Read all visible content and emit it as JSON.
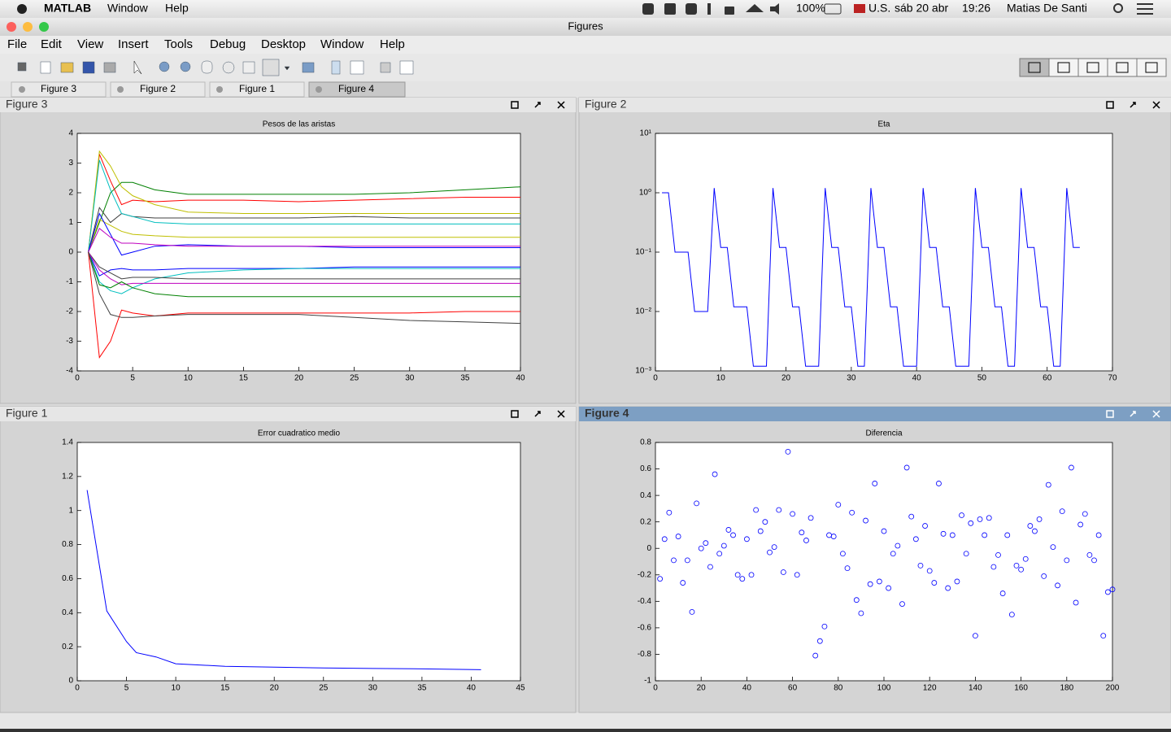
{
  "menubar": {
    "app": "MATLAB",
    "menus": [
      "Window",
      "Help"
    ],
    "status": [
      "100%",
      "U.S.",
      "sáb 20 abr",
      "19:26",
      "Matias De Santi"
    ]
  },
  "window": {
    "title": "Figures",
    "menus": [
      "File",
      "Edit",
      "View",
      "Insert",
      "Tools",
      "Debug",
      "Desktop",
      "Window",
      "Help"
    ],
    "tabs": [
      "Figure 3",
      "Figure 2",
      "Figure 1",
      "Figure 4"
    ]
  },
  "chart_data": [
    {
      "panel": "Figure 3",
      "type": "line",
      "title": "Pesos de las aristas",
      "x": [
        1,
        2,
        3,
        4,
        5,
        7,
        10,
        15,
        20,
        25,
        30,
        35,
        40
      ],
      "series": [
        {
          "color": "#008000",
          "values": [
            0,
            1.0,
            2.0,
            2.35,
            2.35,
            2.1,
            1.95,
            1.95,
            1.95,
            1.95,
            2.0,
            2.1,
            2.2
          ]
        },
        {
          "color": "#ff0000",
          "values": [
            0,
            3.3,
            2.4,
            1.6,
            1.75,
            1.7,
            1.75,
            1.75,
            1.7,
            1.75,
            1.8,
            1.85,
            1.85
          ]
        },
        {
          "color": "#bfbf00",
          "values": [
            0,
            3.4,
            2.9,
            2.2,
            1.9,
            1.6,
            1.35,
            1.3,
            1.3,
            1.3,
            1.3,
            1.3,
            1.3
          ]
        },
        {
          "color": "#404040",
          "values": [
            0,
            1.5,
            1.0,
            1.3,
            1.2,
            1.15,
            1.15,
            1.15,
            1.15,
            1.2,
            1.15,
            1.15,
            1.15
          ]
        },
        {
          "color": "#00bfbf",
          "values": [
            0,
            3.1,
            2.1,
            1.3,
            1.2,
            1.0,
            0.95,
            0.95,
            0.95,
            0.95,
            0.95,
            0.95,
            0.95
          ]
        },
        {
          "color": "#bfbf00",
          "values": [
            0,
            1.1,
            0.9,
            0.7,
            0.6,
            0.55,
            0.5,
            0.5,
            0.5,
            0.5,
            0.5,
            0.5,
            0.5
          ]
        },
        {
          "color": "#0000ff",
          "values": [
            0,
            1.3,
            0.6,
            -0.1,
            0.0,
            0.2,
            0.25,
            0.2,
            0.2,
            0.15,
            0.15,
            0.15,
            0.15
          ]
        },
        {
          "color": "#bf00bf",
          "values": [
            0,
            0.8,
            0.5,
            0.3,
            0.3,
            0.25,
            0.2,
            0.2,
            0.2,
            0.2,
            0.2,
            0.2,
            0.2
          ]
        },
        {
          "color": "#0000ff",
          "values": [
            0,
            -0.8,
            -0.6,
            -0.55,
            -0.6,
            -0.6,
            -0.55,
            -0.55,
            -0.55,
            -0.5,
            -0.5,
            -0.5,
            -0.5
          ]
        },
        {
          "color": "#00bfbf",
          "values": [
            0,
            -1.0,
            -1.3,
            -1.4,
            -1.2,
            -0.9,
            -0.7,
            -0.6,
            -0.55,
            -0.55,
            -0.55,
            -0.55,
            -0.55
          ]
        },
        {
          "color": "#404040",
          "values": [
            0,
            -0.5,
            -0.7,
            -0.9,
            -0.85,
            -0.85,
            -0.9,
            -0.9,
            -0.9,
            -0.9,
            -0.9,
            -0.9,
            -0.9
          ]
        },
        {
          "color": "#bf00bf",
          "values": [
            0,
            -0.6,
            -0.9,
            -1.1,
            -1.05,
            -1.05,
            -1.05,
            -1.05,
            -1.05,
            -1.05,
            -1.05,
            -1.05,
            -1.05
          ]
        },
        {
          "color": "#008000",
          "values": [
            0,
            -1.1,
            -1.2,
            -1.0,
            -1.2,
            -1.4,
            -1.5,
            -1.5,
            -1.5,
            -1.5,
            -1.5,
            -1.5,
            -1.5
          ]
        },
        {
          "color": "#ff0000",
          "values": [
            0,
            -3.55,
            -3.0,
            -1.95,
            -2.05,
            -2.15,
            -2.05,
            -2.05,
            -2.05,
            -2.05,
            -2.05,
            -2.0,
            -2.0
          ]
        },
        {
          "color": "#404040",
          "values": [
            0,
            -1.4,
            -2.1,
            -2.2,
            -2.2,
            -2.15,
            -2.1,
            -2.1,
            -2.1,
            -2.2,
            -2.3,
            -2.35,
            -2.4
          ]
        }
      ],
      "xlim": [
        0,
        40
      ],
      "xticks": [
        0,
        5,
        10,
        15,
        20,
        25,
        30,
        35,
        40
      ],
      "ylim": [
        -4,
        4
      ],
      "yticks": [
        -4,
        -3,
        -2,
        -1,
        0,
        1,
        2,
        3,
        4
      ]
    },
    {
      "panel": "Figure 2",
      "type": "line",
      "title": "Eta",
      "yscale": "log",
      "x": [
        1,
        2,
        3,
        4,
        5,
        6,
        7,
        8,
        9,
        10,
        11,
        12,
        13,
        14,
        15,
        16,
        17,
        18,
        19,
        20,
        21,
        22,
        23,
        24,
        25,
        26,
        27,
        28,
        29,
        30,
        31,
        32,
        33,
        34,
        35,
        36,
        37,
        38,
        39,
        40,
        41,
        42,
        43,
        44,
        45,
        46,
        47,
        48,
        49,
        50,
        51,
        52,
        53,
        54,
        55,
        56,
        57,
        58,
        59,
        60,
        61,
        62,
        63,
        64,
        65
      ],
      "series": [
        {
          "color": "#0000ff",
          "values": [
            1,
            1,
            0.1,
            0.1,
            0.1,
            0.01,
            0.01,
            0.01,
            1.2,
            0.12,
            0.12,
            0.012,
            0.012,
            0.012,
            0.0012,
            0.0012,
            0.0012,
            1.2,
            0.12,
            0.12,
            0.012,
            0.012,
            0.0012,
            0.0012,
            0.0012,
            1.2,
            0.12,
            0.12,
            0.012,
            0.012,
            0.0012,
            0.0012,
            1.2,
            0.12,
            0.12,
            0.012,
            0.012,
            0.0012,
            0.0012,
            0.0012,
            1.2,
            0.12,
            0.12,
            0.012,
            0.012,
            0.0012,
            0.0012,
            0.0012,
            1.2,
            0.12,
            0.12,
            0.012,
            0.012,
            0.0012,
            0.0012,
            1.2,
            0.12,
            0.12,
            0.012,
            0.012,
            0.0012,
            0.0012,
            1.2,
            0.12,
            0.12
          ]
        }
      ],
      "xlim": [
        0,
        70
      ],
      "xticks": [
        0,
        10,
        20,
        30,
        40,
        50,
        60,
        70
      ],
      "ylim": [
        0.001,
        10
      ],
      "yticks": [
        {
          "value": 0.001,
          "label": "10⁻³"
        },
        {
          "value": 0.01,
          "label": "10⁻²"
        },
        {
          "value": 0.1,
          "label": "10⁻¹"
        },
        {
          "value": 1,
          "label": "10⁰"
        },
        {
          "value": 10,
          "label": "10¹"
        }
      ]
    },
    {
      "panel": "Figure 1",
      "type": "line",
      "title": "Error cuadratico medio",
      "x": [
        1,
        3,
        5,
        6,
        8,
        10,
        15,
        20,
        25,
        30,
        35,
        41
      ],
      "series": [
        {
          "color": "#0000ff",
          "values": [
            1.12,
            0.41,
            0.23,
            0.165,
            0.14,
            0.1,
            0.085,
            0.08,
            0.075,
            0.072,
            0.07,
            0.065
          ]
        }
      ],
      "xlim": [
        0,
        45
      ],
      "xticks": [
        0,
        5,
        10,
        15,
        20,
        25,
        30,
        35,
        40,
        45
      ],
      "ylim": [
        0,
        1.4
      ],
      "yticks": [
        0,
        0.2,
        0.4,
        0.6,
        0.8,
        1,
        1.2,
        1.4
      ]
    },
    {
      "panel": "Figure 4",
      "type": "scatter",
      "title": "Diferencia",
      "x": [
        2,
        4,
        6,
        8,
        10,
        12,
        14,
        16,
        18,
        20,
        22,
        24,
        26,
        28,
        30,
        32,
        34,
        36,
        38,
        40,
        42,
        44,
        46,
        48,
        50,
        52,
        54,
        56,
        58,
        60,
        62,
        64,
        66,
        68,
        70,
        72,
        74,
        76,
        78,
        80,
        82,
        84,
        86,
        88,
        90,
        92,
        94,
        96,
        98,
        100,
        102,
        104,
        106,
        108,
        110,
        112,
        114,
        116,
        118,
        120,
        122,
        124,
        126,
        128,
        130,
        132,
        134,
        136,
        138,
        140,
        142,
        144,
        146,
        148,
        150,
        152,
        154,
        156,
        158,
        160,
        162,
        164,
        166,
        168,
        170,
        172,
        174,
        176,
        178,
        180,
        182,
        184,
        186,
        188,
        190,
        192,
        194,
        196,
        198,
        200
      ],
      "series": [
        {
          "color": "#0000ff",
          "values": [
            -0.23,
            0.07,
            0.27,
            -0.09,
            0.09,
            -0.26,
            -0.09,
            -0.48,
            0.34,
            0.0,
            0.04,
            -0.14,
            0.56,
            -0.04,
            0.02,
            0.14,
            0.1,
            -0.2,
            -0.23,
            0.07,
            -0.2,
            0.29,
            0.13,
            0.2,
            -0.03,
            0.01,
            0.29,
            -0.18,
            0.73,
            0.26,
            -0.2,
            0.12,
            0.06,
            0.23,
            -0.81,
            -0.7,
            -0.59,
            0.1,
            0.09,
            0.33,
            -0.04,
            -0.15,
            0.27,
            -0.39,
            -0.49,
            0.21,
            -0.27,
            0.49,
            -0.25,
            0.13,
            -0.3,
            -0.04,
            0.02,
            -0.42,
            0.61,
            0.24,
            0.07,
            -0.13,
            0.17,
            -0.17,
            -0.26,
            0.49,
            0.11,
            -0.3,
            0.1,
            -0.25,
            0.25,
            -0.04,
            0.19,
            -0.66,
            0.22,
            0.1,
            0.23,
            -0.14,
            -0.05,
            -0.34,
            0.1,
            -0.5,
            -0.13,
            -0.16,
            -0.08,
            0.17,
            0.13,
            0.22,
            -0.21,
            0.48,
            0.01,
            -0.28,
            0.28,
            -0.09,
            0.61,
            -0.41,
            0.18,
            0.26,
            -0.05,
            -0.09,
            0.1,
            -0.66,
            -0.33,
            -0.31
          ]
        }
      ],
      "xlim": [
        0,
        200
      ],
      "xticks": [
        0,
        20,
        40,
        60,
        80,
        100,
        120,
        140,
        160,
        180,
        200
      ],
      "ylim": [
        -1,
        0.8
      ],
      "yticks": [
        -1,
        -0.8,
        -0.6,
        -0.4,
        -0.2,
        0,
        0.2,
        0.4,
        0.6,
        0.8
      ]
    }
  ]
}
